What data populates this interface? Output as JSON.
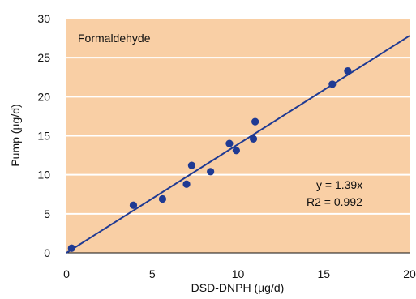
{
  "chart_data": {
    "type": "scatter",
    "xlim": [
      0,
      20
    ],
    "ylim": [
      0,
      30
    ],
    "xticks": [
      0,
      5,
      10,
      15,
      20
    ],
    "yticks": [
      0,
      5,
      10,
      15,
      20,
      25,
      30
    ],
    "xlabel": "DSD-DNPH (µg/d)",
    "ylabel": "Pump (µg/d)",
    "panel_label": "Formaldehyde",
    "equation": "y  = 1.39x",
    "r2": "R2  = 0.992",
    "grid": "horizontal",
    "background_color": "#f9cfa5",
    "series": [
      {
        "color": "#1f3a93",
        "points": [
          [
            0.3,
            0.6
          ],
          [
            3.9,
            6.1
          ],
          [
            5.6,
            6.9
          ],
          [
            7.0,
            8.8
          ],
          [
            7.3,
            11.2
          ],
          [
            8.4,
            10.4
          ],
          [
            9.5,
            14.0
          ],
          [
            9.9,
            13.1
          ],
          [
            10.9,
            14.6
          ],
          [
            11.0,
            16.8
          ],
          [
            15.5,
            21.6
          ],
          [
            16.4,
            23.3
          ]
        ]
      }
    ],
    "fit_line": {
      "slope": 1.39,
      "intercept": 0,
      "color": "#1f3a93"
    }
  }
}
